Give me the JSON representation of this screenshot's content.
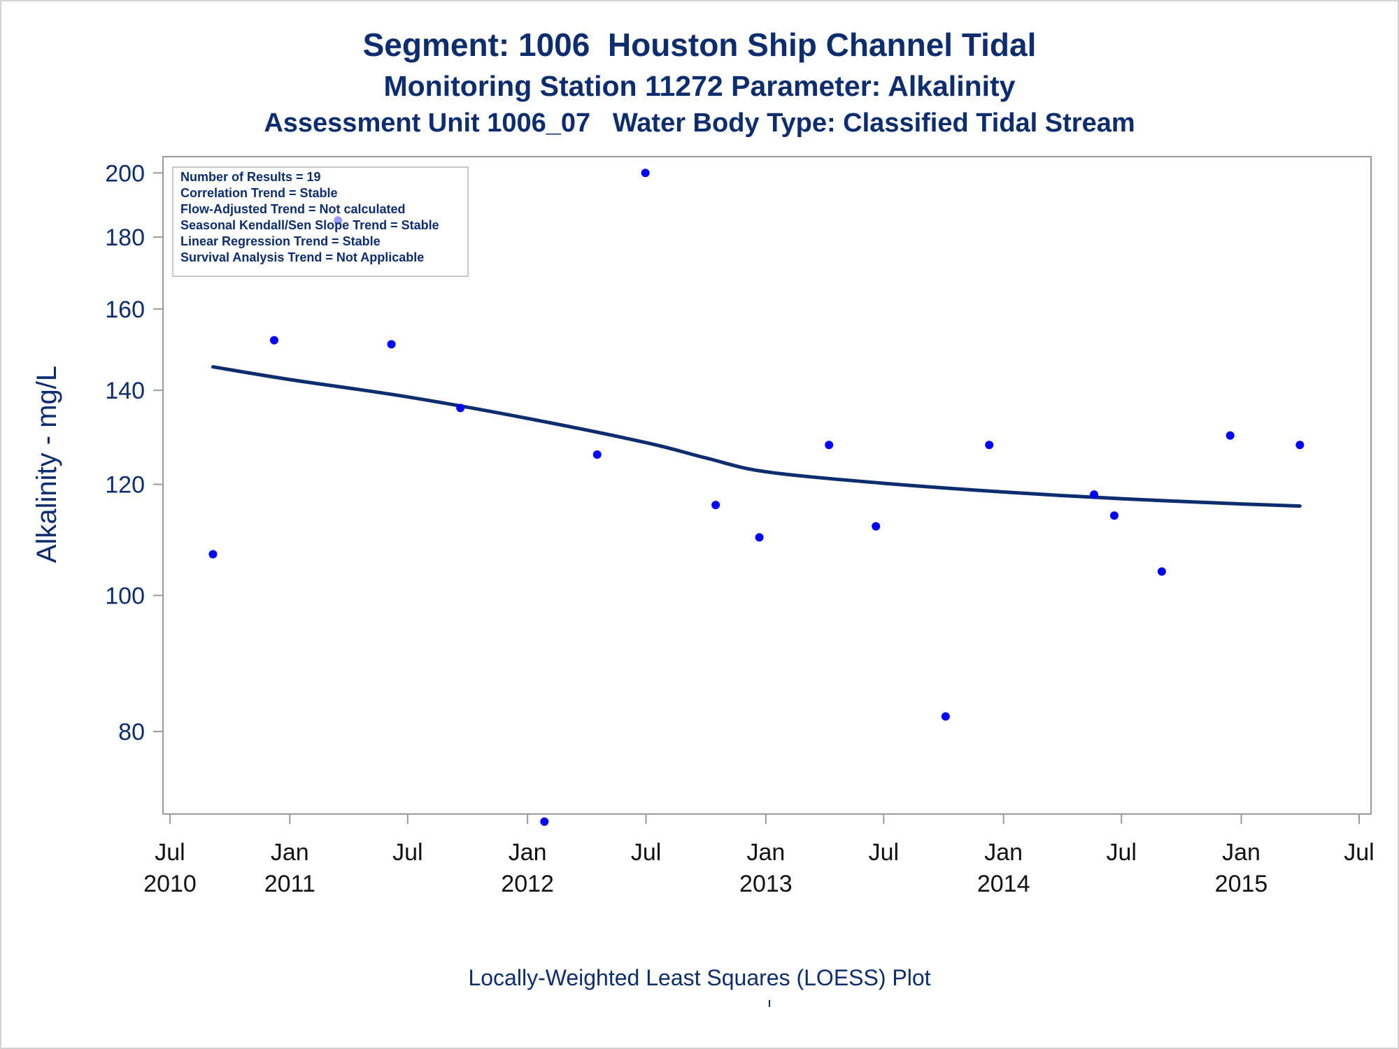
{
  "chart_data": {
    "type": "scatter",
    "title": "Segment: 1006  Houston Ship Channel Tidal",
    "subtitle": "Monitoring Station 11272 Parameter: Alkalinity",
    "subtitle2": "Assessment Unit 1006_07   Water Body Type: Classified Tidal Stream",
    "xlabel": "",
    "ylabel": "Alkalinity - mg/L",
    "footnote": "Locally-Weighted Least Squares (LOESS) Plot",
    "y_scale": "log",
    "ylim": [
      71,
      204
    ],
    "xlim": [
      "2010-07-01",
      "2015-07-01"
    ],
    "y_ticks": [
      80,
      100,
      120,
      140,
      160,
      180,
      200
    ],
    "y_tick_labels": [
      "80",
      "100",
      "120",
      "140",
      "160",
      "180",
      "200"
    ],
    "x_ticks": [
      "2010-07-01",
      "2011-01-01",
      "2011-07-01",
      "2012-01-01",
      "2012-07-01",
      "2013-01-01",
      "2013-07-01",
      "2014-01-01",
      "2014-07-01",
      "2015-01-01",
      "2015-07-01"
    ],
    "x_tick_labels": [
      {
        "month": "Jul",
        "year": "2010"
      },
      {
        "month": "Jan",
        "year": "2011"
      },
      {
        "month": "Jul",
        "year": ""
      },
      {
        "month": "Jan",
        "year": "2012"
      },
      {
        "month": "Jul",
        "year": ""
      },
      {
        "month": "Jan",
        "year": "2013"
      },
      {
        "month": "Jul",
        "year": ""
      },
      {
        "month": "Jan",
        "year": "2014"
      },
      {
        "month": "Jul",
        "year": ""
      },
      {
        "month": "Jan",
        "year": "2015"
      },
      {
        "month": "Jul",
        "year": ""
      }
    ],
    "grid": false,
    "point_color": "#0000ff",
    "line_color": "#0d2d6e",
    "axis_color": "#9a9a9a",
    "text_color": "#0d2d6e",
    "stats_box": {
      "placement": "top-left",
      "lines": [
        "Number of Results = 19",
        "Correlation Trend = Stable",
        "Flow-Adjusted Trend = Not calculated",
        "Seasonal Kendall/Sen Slope Trend = Stable",
        "Linear Regression Trend = Stable",
        "Survival Analysis Trend = Not Applicable"
      ]
    },
    "series": [
      {
        "kind": "points",
        "points": [
          {
            "date": "2010-09-05",
            "y": 107
          },
          {
            "date": "2010-12-08",
            "y": 152
          },
          {
            "date": "2011-03-16",
            "y": 185
          },
          {
            "date": "2011-06-06",
            "y": 151
          },
          {
            "date": "2011-09-20",
            "y": 136
          },
          {
            "date": "2012-01-27",
            "y": 69
          },
          {
            "date": "2012-04-17",
            "y": 126
          },
          {
            "date": "2012-06-30",
            "y": 200
          },
          {
            "date": "2012-10-16",
            "y": 116
          },
          {
            "date": "2012-12-22",
            "y": 110
          },
          {
            "date": "2013-04-08",
            "y": 128
          },
          {
            "date": "2013-06-19",
            "y": 112
          },
          {
            "date": "2013-10-04",
            "y": 82
          },
          {
            "date": "2013-12-10",
            "y": 128
          },
          {
            "date": "2014-05-20",
            "y": 118
          },
          {
            "date": "2014-06-20",
            "y": 114
          },
          {
            "date": "2014-09-01",
            "y": 104
          },
          {
            "date": "2014-12-15",
            "y": 130
          },
          {
            "date": "2015-04-01",
            "y": 128
          }
        ]
      },
      {
        "kind": "loess",
        "points": [
          {
            "date": "2010-09-05",
            "y": 145.5
          },
          {
            "date": "2011-01-01",
            "y": 142.5
          },
          {
            "date": "2011-07-01",
            "y": 138.5
          },
          {
            "date": "2012-01-01",
            "y": 133.7
          },
          {
            "date": "2012-07-01",
            "y": 128.5
          },
          {
            "date": "2012-10-01",
            "y": 125.3
          },
          {
            "date": "2013-01-01",
            "y": 122.5
          },
          {
            "date": "2013-07-01",
            "y": 120.2
          },
          {
            "date": "2014-01-01",
            "y": 118.5
          },
          {
            "date": "2014-07-01",
            "y": 117.2
          },
          {
            "date": "2015-01-01",
            "y": 116.2
          },
          {
            "date": "2015-04-01",
            "y": 115.8
          }
        ]
      }
    ]
  }
}
